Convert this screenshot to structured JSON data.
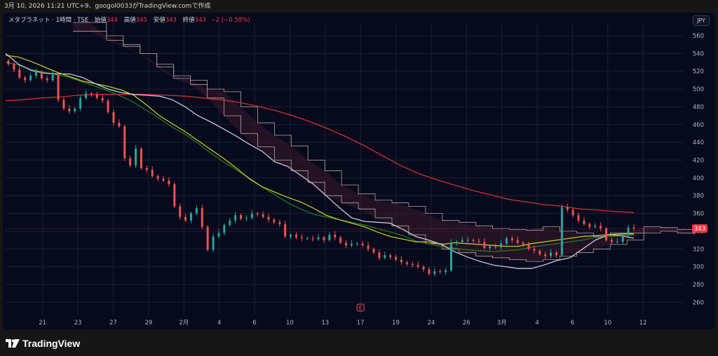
{
  "header": {
    "snapshot_text": "3月 10, 2026 11:21 UTC+9、googol0033がTradingView.comで作成"
  },
  "legend": {
    "symbol": "メタプラネット · 1時間 · TSE",
    "open_label": "始値",
    "open_value": "344",
    "high_label": "高値",
    "high_value": "345",
    "low_label": "安値",
    "low_value": "343",
    "close_label": "終値",
    "close_value": "343",
    "change": "−2 (−0.58%)"
  },
  "currency_button": "JPY",
  "footer": {
    "brand": "TradingView"
  },
  "earnings_marker": "E",
  "colors": {
    "background": "#060a1c",
    "up_candle": "#26a69a",
    "down_candle": "#ef5350",
    "ma_red": "#d32f2f",
    "ma_yellow": "#c8c820",
    "ma_white": "#c9c9d6",
    "ma_green": "#1f7a2a",
    "cloud_outline": "#b9a6a6",
    "cloud_fill": "#3a1a2a",
    "price_tag": "#f23645"
  },
  "chart_data": {
    "type": "candlestick",
    "y_axis": {
      "min": 250,
      "max": 575,
      "ticks": [
        260,
        280,
        300,
        320,
        340,
        360,
        380,
        400,
        420,
        440,
        460,
        480,
        500,
        520,
        540,
        560
      ]
    },
    "x_axis": {
      "ticks": [
        {
          "label": "21",
          "idx": 1
        },
        {
          "label": "23",
          "idx": 4
        },
        {
          "label": "27",
          "idx": 7
        },
        {
          "label": "29",
          "idx": 10
        },
        {
          "label": "2月",
          "idx": 13
        },
        {
          "label": "4",
          "idx": 16
        },
        {
          "label": "6",
          "idx": 19
        },
        {
          "label": "10",
          "idx": 22
        },
        {
          "label": "13",
          "idx": 25
        },
        {
          "label": "17",
          "idx": 28
        },
        {
          "label": "19",
          "idx": 31
        },
        {
          "label": "24",
          "idx": 34
        },
        {
          "label": "26",
          "idx": 37
        },
        {
          "label": "3月",
          "idx": 40
        },
        {
          "label": "4",
          "idx": 43
        },
        {
          "label": "6",
          "idx": 46
        },
        {
          "label": "10",
          "idx": 49
        },
        {
          "label": "12",
          "idx": 52
        }
      ],
      "sessions": 54
    },
    "last_price": 343,
    "closes": [
      528,
      522,
      513,
      510,
      515,
      519,
      512,
      510,
      516,
      488,
      478,
      475,
      478,
      490,
      495,
      494,
      490,
      487,
      474,
      462,
      458,
      422,
      414,
      433,
      411,
      409,
      402,
      399,
      397,
      393,
      368,
      356,
      352,
      360,
      366,
      345,
      319,
      334,
      338,
      347,
      352,
      358,
      354,
      355,
      360,
      359,
      356,
      353,
      350,
      348,
      334,
      336,
      333,
      332,
      332,
      331,
      333,
      330,
      336,
      333,
      327,
      324,
      326,
      326,
      324,
      320,
      316,
      310,
      313,
      311,
      308,
      305,
      303,
      302,
      300,
      297,
      292,
      295,
      294,
      296,
      327,
      328,
      330,
      330,
      329,
      328,
      321,
      323,
      322,
      326,
      332,
      330,
      327,
      325,
      320,
      318,
      314,
      312,
      316,
      313,
      367,
      364,
      358,
      352,
      348,
      345,
      346,
      343,
      330,
      328,
      328,
      336,
      344,
      343
    ],
    "ma_white": [
      540,
      528,
      521,
      518,
      517,
      517,
      513,
      506,
      500,
      496,
      494,
      493,
      492,
      488,
      480,
      470,
      463,
      455,
      447,
      438,
      430,
      418,
      413,
      403,
      393,
      380,
      367,
      355,
      351,
      350,
      349,
      342,
      334,
      330,
      325,
      317,
      311,
      306,
      302,
      300,
      298,
      298,
      302,
      307,
      310,
      320,
      330,
      336,
      335,
      332
    ],
    "ma_green": [
      530,
      527,
      522,
      519,
      516,
      513,
      508,
      503,
      498,
      492,
      485,
      476,
      467,
      457,
      449,
      439,
      428,
      418,
      409,
      400,
      390,
      381,
      372,
      365,
      359,
      356,
      353,
      350,
      347,
      343,
      339,
      335,
      329,
      326,
      323,
      321,
      319,
      318,
      317,
      318,
      319,
      322,
      324,
      326,
      328,
      330,
      333,
      334,
      335,
      336
    ],
    "ma_yellow": [
      538,
      536,
      531,
      525,
      519,
      514,
      509,
      506,
      503,
      499,
      493,
      482,
      470,
      461,
      452,
      442,
      432,
      422,
      411,
      399,
      390,
      384,
      378,
      373,
      366,
      358,
      353,
      349,
      345,
      339,
      334,
      331,
      328,
      328,
      325,
      327,
      326,
      325,
      324,
      323,
      323,
      326,
      328,
      330,
      332,
      334,
      335,
      336,
      337,
      337
    ],
    "ma_red": [
      487,
      488,
      490,
      491,
      493,
      494,
      494,
      494,
      494,
      493,
      492,
      490,
      488,
      485,
      481,
      476,
      470,
      463,
      455,
      446,
      436,
      425,
      414,
      405,
      398,
      392,
      386,
      381,
      376,
      373,
      370,
      368,
      365,
      364,
      362,
      361
    ]
  }
}
